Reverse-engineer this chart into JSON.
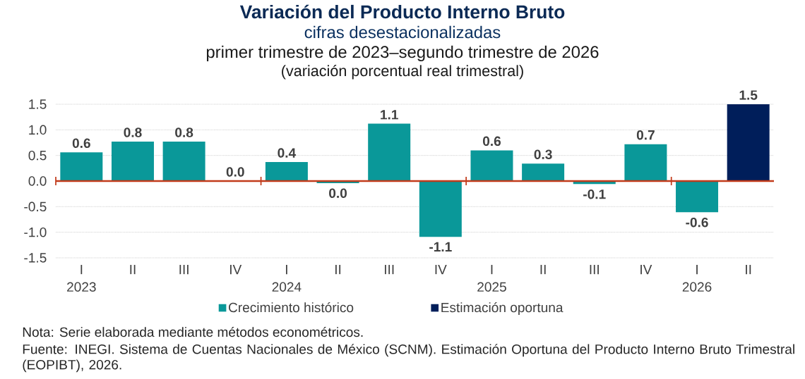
{
  "chart_data": {
    "type": "bar",
    "title": "Variación del Producto Interno Bruto",
    "subtitle": "cifras desestacionalizadas",
    "annotations": [
      "primer trimestre de 2023–segundo trimestre de 2026",
      "(variación porcentual real trimestral)",
      "Nota: Serie elaborada mediante métodos econométricos.",
      "Fuente: INEGI. Sistema de Cuentas Nacionales de México (SCNM). Estimación Oportuna del Producto Interno Bruto Trimestral (EOPIBT), 2026."
    ],
    "categories": [
      "I 2023",
      "II",
      "III",
      "IV",
      "I 2024",
      "II",
      "III",
      "IV",
      "I 2025",
      "II",
      "III",
      "IV",
      "I 2026",
      "II"
    ],
    "series": [
      {
        "name": "Crecimiento histórico",
        "color": "#0a9899",
        "values": [
          0.56,
          0.77,
          0.77,
          0,
          0.37,
          -0.04,
          1.12,
          -1.09,
          0.6,
          0.34,
          -0.06,
          0.72,
          -0.61,
          null
        ],
        "value_labels": [
          "0.6",
          "0.8",
          "0.8",
          "0.0",
          "0.4",
          "0.0",
          "1.1",
          "-1.1",
          "0.6",
          "0.3",
          "-0.1",
          "0.7",
          "-0.6",
          null
        ]
      },
      {
        "name": "Estimación oportuna",
        "color": "#001e5a",
        "values": [
          null,
          null,
          null,
          null,
          null,
          null,
          null,
          null,
          null,
          null,
          null,
          null,
          null,
          1.5
        ],
        "value_labels": [
          null,
          null,
          null,
          null,
          null,
          null,
          null,
          null,
          null,
          null,
          null,
          null,
          null,
          "1.5"
        ]
      }
    ],
    "ylim": [
      -1.5,
      1.5
    ],
    "yticks": [
      -1.5,
      {
        "value": -1,
        "label": "-1.0"
      },
      -0.5,
      {
        "value": 0,
        "label": "0.0"
      },
      0.5,
      {
        "value": 1,
        "label": "1.0"
      },
      1.5
    ],
    "ref_lines": [
      {
        "axis": "y",
        "value": 0,
        "color": "#c23b1b"
      }
    ],
    "grid": "y",
    "legend": "bottom"
  }
}
